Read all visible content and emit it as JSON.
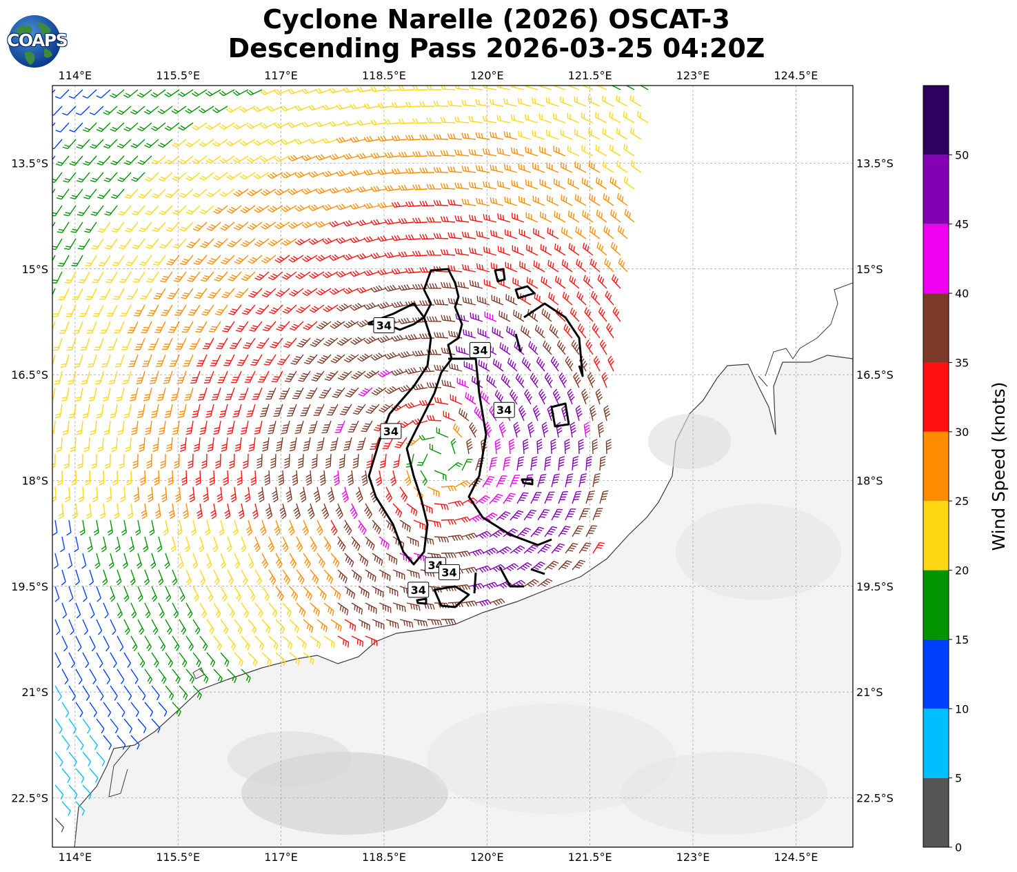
{
  "title": {
    "line1": "Cyclone Narelle (2026) OSCAT-3",
    "line2": "Descending Pass 2026-03-25 04:20Z"
  },
  "logo": {
    "text": "COAPS",
    "icon": "globe-icon"
  },
  "map": {
    "lon_range": [
      113.67,
      125.33
    ],
    "lat_range": [
      -23.2,
      -12.4
    ],
    "lon_ticks": [
      {
        "v": 114,
        "label": "114°E"
      },
      {
        "v": 115.5,
        "label": "115.5°E"
      },
      {
        "v": 117,
        "label": "117°E"
      },
      {
        "v": 118.5,
        "label": "118.5°E"
      },
      {
        "v": 120,
        "label": "120°E"
      },
      {
        "v": 121.5,
        "label": "121.5°E"
      },
      {
        "v": 123,
        "label": "123°E"
      },
      {
        "v": 124.5,
        "label": "124.5°E"
      }
    ],
    "lat_ticks": [
      {
        "v": -13.5,
        "label": "13.5°S"
      },
      {
        "v": -15,
        "label": "15°S"
      },
      {
        "v": -16.5,
        "label": "16.5°S"
      },
      {
        "v": -18,
        "label": "18°S"
      },
      {
        "v": -19.5,
        "label": "19.5°S"
      },
      {
        "v": -21,
        "label": "21°S"
      },
      {
        "v": -22.5,
        "label": "22.5°S"
      }
    ],
    "gridlines": true,
    "contour_label": "34",
    "contour_label_positions": [
      [
        118.5,
        -15.8
      ],
      [
        119.9,
        -16.15
      ],
      [
        120.25,
        -17.0
      ],
      [
        118.6,
        -17.3
      ],
      [
        119.25,
        -19.2
      ],
      [
        119.45,
        -19.3
      ],
      [
        119.0,
        -19.55
      ]
    ]
  },
  "colorbar": {
    "label": "Wind Speed (knots)",
    "bins": [
      {
        "min": 0,
        "max": 5,
        "color": "#555555"
      },
      {
        "min": 5,
        "max": 10,
        "color": "#00bfff"
      },
      {
        "min": 10,
        "max": 15,
        "color": "#0040ff"
      },
      {
        "min": 15,
        "max": 20,
        "color": "#009400"
      },
      {
        "min": 20,
        "max": 25,
        "color": "#ffd712"
      },
      {
        "min": 25,
        "max": 30,
        "color": "#ff8c00"
      },
      {
        "min": 30,
        "max": 35,
        "color": "#ff1010"
      },
      {
        "min": 35,
        "max": 40,
        "color": "#7d3a28"
      },
      {
        "min": 40,
        "max": 45,
        "color": "#f000f0"
      },
      {
        "min": 45,
        "max": 50,
        "color": "#8400b4"
      },
      {
        "min": 50,
        "max": 55,
        "color": "#2e0060"
      }
    ],
    "ticks": [
      "0",
      "5",
      "10",
      "15",
      "20",
      "25",
      "30",
      "35",
      "40",
      "45",
      "50"
    ]
  },
  "storm": {
    "center_lon": 119.3,
    "center_lat": -17.7
  }
}
